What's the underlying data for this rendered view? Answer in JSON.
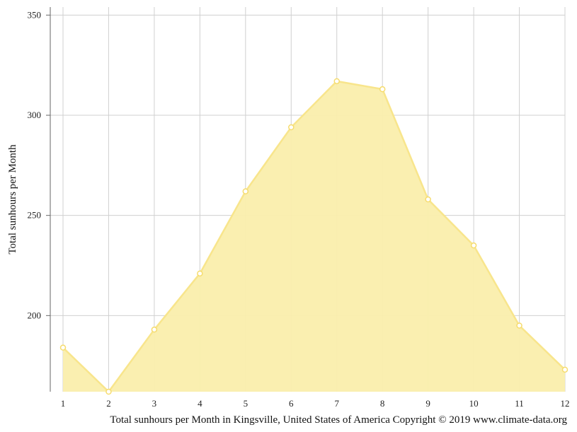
{
  "chart_data": {
    "type": "area",
    "x": [
      1,
      2,
      3,
      4,
      5,
      6,
      7,
      8,
      9,
      10,
      11,
      12
    ],
    "series": [
      {
        "values": [
          184,
          162,
          193,
          221,
          262,
          294,
          317,
          313,
          258,
          235,
          195,
          173
        ]
      }
    ],
    "ylabel": "Total sunhours per Month",
    "caption": "Total sunhours per Month in Kingsville, United States of America Copyright © 2019 www.climate-data.org",
    "yticks": [
      200,
      250,
      300,
      350
    ],
    "ylim": [
      162,
      354
    ],
    "grid": true,
    "colors": {
      "fill": "#faeeac",
      "line": "#f8e58c",
      "marker": "#f6dc6e"
    }
  }
}
